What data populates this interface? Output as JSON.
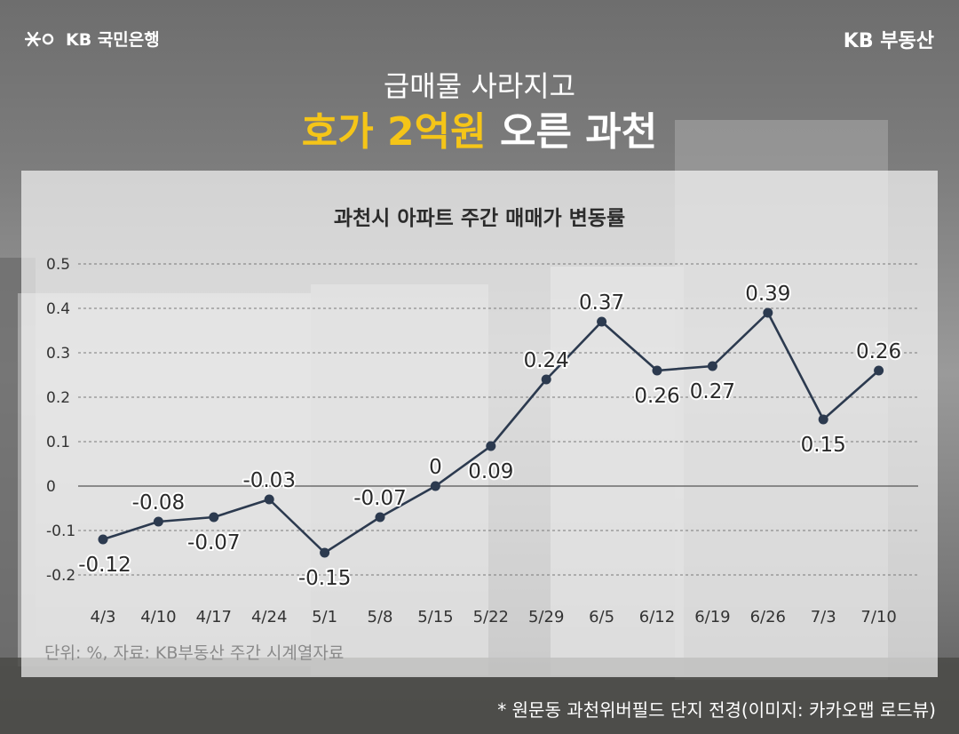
{
  "header": {
    "bank_logo_text": "KB 국민은행",
    "brand_right": "KB 부동산",
    "headline_line1": "급매물 사라지고",
    "headline_highlight": "호가 2억원",
    "headline_rest": "오른 과천"
  },
  "colors": {
    "highlight": "#f5c518",
    "line": "#2c3a4f",
    "axis_text": "#333333"
  },
  "chart_data": {
    "type": "line",
    "title": "과천시 아파트 주간 매매가 변동률",
    "categories": [
      "4/3",
      "4/10",
      "4/17",
      "4/24",
      "5/1",
      "5/8",
      "5/15",
      "5/22",
      "5/29",
      "6/5",
      "6/12",
      "6/19",
      "6/26",
      "7/3",
      "7/10"
    ],
    "values": [
      -0.12,
      -0.08,
      -0.07,
      -0.03,
      -0.15,
      -0.07,
      0,
      0.09,
      0.24,
      0.37,
      0.26,
      0.27,
      0.39,
      0.15,
      0.26
    ],
    "value_labels": [
      "-0.12",
      "-0.08",
      "-0.07",
      "-0.03",
      "-0.15",
      "-0.07",
      "0",
      "0.09",
      "0.24",
      "0.37",
      "0.26",
      "0.27",
      "0.39",
      "0.15",
      "0.26"
    ],
    "label_positions": [
      "below",
      "above",
      "below",
      "above",
      "below",
      "above",
      "above",
      "below",
      "above",
      "above",
      "below",
      "below",
      "above",
      "below",
      "above"
    ],
    "yticks": [
      "0.5",
      "0.4",
      "0.3",
      "0.2",
      "0.1",
      "0",
      "-0.1",
      "-0.2"
    ],
    "ytick_values": [
      0.5,
      0.4,
      0.3,
      0.2,
      0.1,
      0,
      -0.1,
      -0.2
    ],
    "ylim": [
      -0.2,
      0.5
    ],
    "grid": true,
    "source": "단위: %, 자료: KB부동산 주간 시계열자료"
  },
  "caption": "* 원문동 과천위버필드 단지 전경(이미지: 카카오맵 로드뷰)"
}
